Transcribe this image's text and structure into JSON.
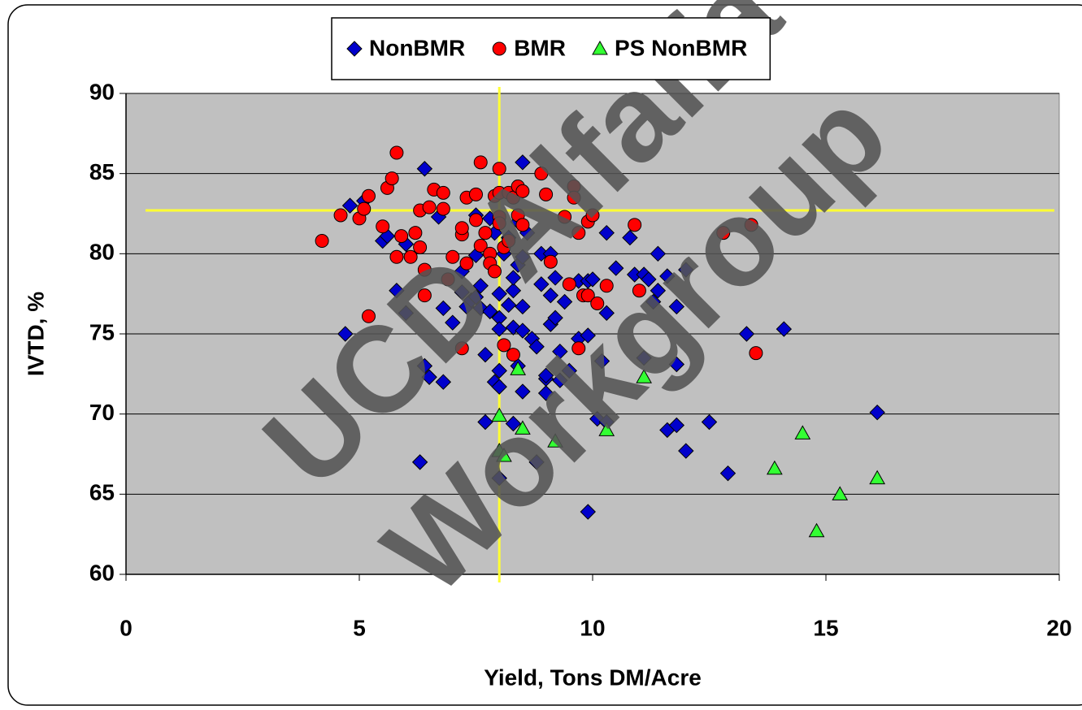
{
  "chart_data": {
    "type": "scatter",
    "xlabel": "Yield, Tons DM/Acre",
    "ylabel": "IVTD, %",
    "watermark": [
      "UCD Alfalfa",
      "Workgroup"
    ],
    "xlim": [
      0,
      20
    ],
    "xticks": [
      0,
      5,
      10,
      15,
      20
    ],
    "ylim": [
      60,
      90
    ],
    "yticks": [
      60,
      65,
      70,
      75,
      80,
      85,
      90
    ],
    "grid": true,
    "legend": "top",
    "plot_color": "#c0c0c0",
    "reference_lines": {
      "x": 8,
      "y": 82.7,
      "color": "#ffff33"
    },
    "series": [
      {
        "name": "NonBMR",
        "color": "#0000cc",
        "marker": "diamond",
        "x": [
          4.7,
          4.8,
          5.1,
          5.5,
          5.6,
          5.8,
          6.0,
          6.0,
          6.3,
          6.4,
          6.4,
          6.5,
          6.8,
          6.8,
          6.7,
          7.0,
          7.2,
          7.2,
          7.3,
          7.4,
          7.5,
          7.5,
          7.5,
          7.6,
          7.6,
          7.7,
          7.7,
          7.8,
          7.8,
          7.9,
          7.9,
          8.0,
          8.0,
          8.0,
          8.0,
          8.0,
          8.0,
          8.1,
          8.2,
          8.2,
          8.3,
          8.3,
          8.3,
          8.3,
          8.4,
          8.4,
          8.4,
          8.5,
          8.5,
          8.5,
          8.5,
          8.5,
          8.6,
          8.7,
          8.8,
          8.8,
          8.9,
          8.9,
          9.0,
          9.0,
          9.0,
          9.1,
          9.2,
          9.1,
          9.1,
          9.2,
          9.3,
          9.3,
          9.4,
          9.5,
          9.7,
          9.7,
          9.9,
          9.9,
          9.9,
          10.0,
          10.1,
          10.2,
          10.3,
          10.3,
          10.3,
          10.5,
          10.8,
          10.9,
          11.1,
          11.1,
          11.2,
          11.3,
          11.4,
          11.4,
          11.6,
          11.6,
          11.8,
          11.8,
          11.8,
          12.0,
          12.0,
          12.5,
          12.9,
          13.3,
          14.1,
          16.1
        ],
        "values": [
          75.0,
          83.0,
          83.3,
          80.8,
          81.1,
          77.7,
          80.6,
          76.3,
          67.0,
          85.3,
          73.0,
          72.3,
          72.0,
          76.6,
          82.3,
          75.7,
          78.9,
          77.6,
          76.7,
          77.1,
          79.9,
          82.4,
          77.3,
          76.6,
          78.0,
          69.5,
          73.7,
          76.4,
          82.2,
          81.3,
          72.0,
          72.7,
          71.7,
          66.0,
          77.5,
          76.0,
          75.3,
          80.0,
          81.0,
          76.8,
          75.4,
          77.7,
          78.5,
          69.4,
          73.0,
          79.3,
          82.0,
          85.7,
          79.8,
          76.7,
          75.2,
          71.4,
          81.3,
          74.7,
          74.2,
          67.0,
          80.0,
          78.1,
          71.3,
          72.2,
          72.4,
          80.0,
          78.5,
          77.4,
          75.6,
          76.0,
          73.9,
          72.1,
          77.0,
          72.7,
          78.3,
          74.7,
          78.3,
          74.9,
          63.9,
          78.4,
          69.7,
          73.3,
          69.5,
          76.3,
          81.3,
          79.1,
          81.0,
          78.7,
          78.7,
          73.5,
          78.4,
          77.0,
          80.0,
          77.7,
          78.6,
          69.0,
          69.3,
          76.7,
          73.1,
          79.0,
          67.7,
          69.5,
          66.3,
          75.0,
          75.3,
          70.1
        ]
      },
      {
        "name": "BMR",
        "color": "#ff0000",
        "marker": "circle",
        "x": [
          4.2,
          4.6,
          5.0,
          5.1,
          5.2,
          5.2,
          5.5,
          5.6,
          5.7,
          5.8,
          5.9,
          5.8,
          6.1,
          6.2,
          6.3,
          6.3,
          6.4,
          6.4,
          6.5,
          6.6,
          6.8,
          6.8,
          6.9,
          7.0,
          7.2,
          7.2,
          7.2,
          7.3,
          7.3,
          7.5,
          7.5,
          7.6,
          7.6,
          7.7,
          7.8,
          7.8,
          7.9,
          8.0,
          7.9,
          8.0,
          8.0,
          8.0,
          8.1,
          8.1,
          8.2,
          8.2,
          8.3,
          8.4,
          8.3,
          8.4,
          8.5,
          8.5,
          8.9,
          9.0,
          9.1,
          9.4,
          9.5,
          9.6,
          9.6,
          9.7,
          9.7,
          9.8,
          9.9,
          9.9,
          10.0,
          10.1,
          10.3,
          10.9,
          11.0,
          12.8,
          13.4,
          13.5
        ],
        "values": [
          80.8,
          82.4,
          82.2,
          82.8,
          83.6,
          76.1,
          81.7,
          84.1,
          84.7,
          79.8,
          81.1,
          86.3,
          79.8,
          81.3,
          82.7,
          80.4,
          79.0,
          77.4,
          82.9,
          84.0,
          83.8,
          82.8,
          78.4,
          79.8,
          81.2,
          81.6,
          74.1,
          79.4,
          83.5,
          83.7,
          82.1,
          80.5,
          85.7,
          81.3,
          80.0,
          79.4,
          83.6,
          83.8,
          78.9,
          85.3,
          82.3,
          81.9,
          80.4,
          74.3,
          80.8,
          83.8,
          83.5,
          84.2,
          73.7,
          82.4,
          83.9,
          81.8,
          85.0,
          83.7,
          79.5,
          82.3,
          78.1,
          84.2,
          83.5,
          81.3,
          74.1,
          77.4,
          77.4,
          82.0,
          82.4,
          76.9,
          78.0,
          81.8,
          77.7,
          81.3,
          81.8,
          73.8
        ]
      },
      {
        "name": "PS NonBMR",
        "color": "#33ff33",
        "marker": "triangle",
        "x": [
          8.4,
          8.0,
          8.0,
          8.1,
          8.5,
          9.2,
          10.3,
          11.1,
          13.9,
          14.5,
          15.3,
          14.8,
          16.1
        ],
        "values": [
          72.8,
          69.9,
          67.7,
          67.4,
          69.1,
          68.3,
          69.0,
          72.3,
          66.6,
          68.8,
          65.0,
          62.7,
          66.0
        ]
      }
    ]
  }
}
